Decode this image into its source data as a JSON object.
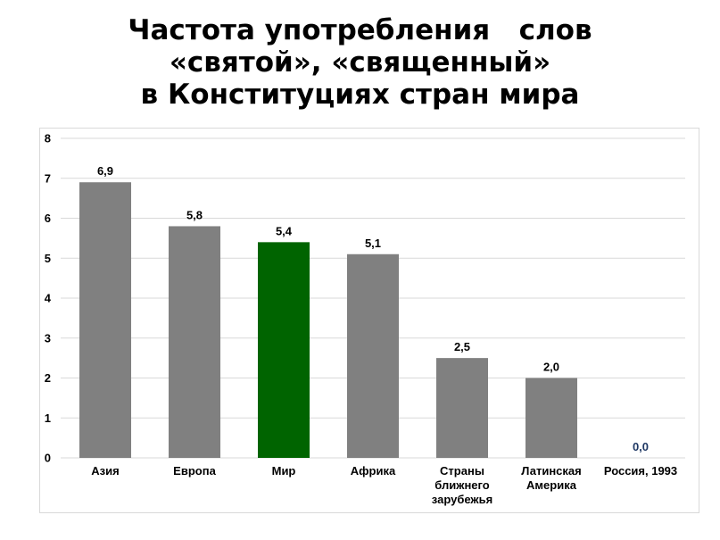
{
  "chart_data": {
    "type": "bar",
    "title_lines": [
      "Частота употребления   слов",
      "«святой», «священный»",
      "в Конституциях стран мира"
    ],
    "categories": [
      [
        "Азия"
      ],
      [
        "Европа"
      ],
      [
        "Мир"
      ],
      [
        "Африка"
      ],
      [
        "Страны",
        "ближнего",
        "зарубежья"
      ],
      [
        "Латинская",
        "Америка"
      ],
      [
        "Россия, 1993"
      ]
    ],
    "values": [
      6.9,
      5.8,
      5.4,
      5.1,
      2.5,
      2.0,
      0.0
    ],
    "value_labels": [
      "6,9",
      "5,8",
      "5,4",
      "5,1",
      "2,5",
      "2,0",
      "0,0"
    ],
    "y_ticks": [
      "0",
      "1",
      "2",
      "3",
      "4",
      "5",
      "6",
      "7",
      "8"
    ],
    "ylim": [
      0,
      8
    ],
    "grid": true,
    "legend": "none",
    "colors": {
      "bar": "#808080",
      "highlight_bar": "#006400",
      "highlight_index": 2,
      "zero_label": "#1f3864",
      "grid": "#d9d9d9"
    }
  }
}
